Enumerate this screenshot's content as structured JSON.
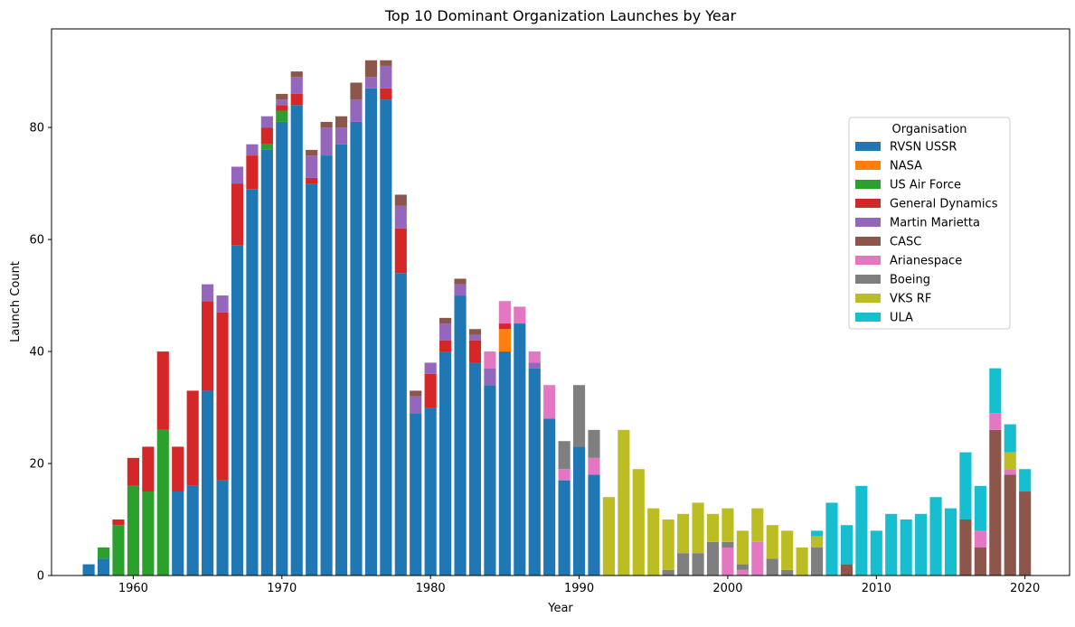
{
  "chart_data": {
    "type": "bar",
    "stacked": true,
    "title": "Top 10 Dominant Organization Launches by Year",
    "xlabel": "Year",
    "ylabel": "Launch Count",
    "xlim": [
      1954.5,
      2023
    ],
    "ylim": [
      0,
      97.6
    ],
    "xticks": [
      1960,
      1970,
      1980,
      1990,
      2000,
      2010,
      2020
    ],
    "yticks": [
      0,
      20,
      40,
      60,
      80
    ],
    "grid": false,
    "legend": {
      "title": "Organisation",
      "placement": "upper-right"
    },
    "series": [
      {
        "name": "RVSN USSR",
        "color": "#1f77b4",
        "data": {
          "1957": 2,
          "1958": 3,
          "1963": 15,
          "1964": 16,
          "1965": 33,
          "1966": 17,
          "1967": 59,
          "1968": 69,
          "1969": 76,
          "1970": 81,
          "1971": 84,
          "1972": 70,
          "1973": 75,
          "1974": 77,
          "1975": 81,
          "1976": 87,
          "1977": 85,
          "1978": 54,
          "1979": 29,
          "1980": 30,
          "1981": 40,
          "1982": 50,
          "1983": 38,
          "1984": 34,
          "1985": 40,
          "1986": 45,
          "1987": 37,
          "1988": 28,
          "1989": 17,
          "1990": 23,
          "1991": 18
        }
      },
      {
        "name": "NASA",
        "color": "#ff7f0e",
        "data": {
          "1985": 4
        }
      },
      {
        "name": "US Air Force",
        "color": "#2ca02c",
        "data": {
          "1958": 2,
          "1959": 9,
          "1960": 16,
          "1961": 15,
          "1962": 26,
          "1969": 1,
          "1970": 2
        }
      },
      {
        "name": "General Dynamics",
        "color": "#d62728",
        "data": {
          "1959": 1,
          "1960": 5,
          "1961": 8,
          "1962": 14,
          "1963": 8,
          "1964": 17,
          "1965": 16,
          "1966": 30,
          "1967": 11,
          "1968": 6,
          "1969": 3,
          "1970": 1,
          "1971": 2,
          "1972": 1,
          "1977": 2,
          "1978": 8,
          "1980": 6,
          "1981": 2,
          "1983": 4,
          "1985": 1
        }
      },
      {
        "name": "Martin Marietta",
        "color": "#9467bd",
        "data": {
          "1965": 3,
          "1966": 3,
          "1967": 3,
          "1968": 2,
          "1969": 2,
          "1970": 1,
          "1971": 3,
          "1972": 4,
          "1973": 5,
          "1974": 3,
          "1975": 4,
          "1976": 2,
          "1977": 4,
          "1978": 4,
          "1979": 3,
          "1980": 2,
          "1981": 3,
          "1982": 2,
          "1983": 1,
          "1984": 3,
          "1987": 1
        }
      },
      {
        "name": "CASC",
        "color": "#8c564b",
        "data": {
          "1970": 1,
          "1971": 1,
          "1972": 1,
          "1973": 1,
          "1974": 2,
          "1975": 3,
          "1976": 3,
          "1977": 1,
          "1978": 2,
          "1979": 1,
          "1981": 1,
          "1982": 1,
          "1983": 1,
          "2008": 2,
          "2016": 10,
          "2017": 5,
          "2018": 26,
          "2019": 18,
          "2020": 15
        }
      },
      {
        "name": "Arianespace",
        "color": "#e377c2",
        "data": {
          "1984": 3,
          "1985": 4,
          "1986": 3,
          "1987": 2,
          "1988": 6,
          "1989": 2,
          "1991": 3,
          "2000": 5,
          "2001": 1,
          "2002": 6,
          "2017": 3,
          "2018": 3,
          "2019": 1
        }
      },
      {
        "name": "Boeing",
        "color": "#7f7f7f",
        "data": {
          "1989": 5,
          "1990": 11,
          "1991": 5,
          "1996": 1,
          "1997": 4,
          "1998": 4,
          "1999": 6,
          "2000": 1,
          "2001": 1,
          "2003": 3,
          "2004": 1,
          "2006": 5
        }
      },
      {
        "name": "VKS RF",
        "color": "#bcbd22",
        "data": {
          "1992": 14,
          "1993": 26,
          "1994": 19,
          "1995": 12,
          "1996": 9,
          "1997": 7,
          "1998": 9,
          "1999": 5,
          "2000": 6,
          "2001": 6,
          "2002": 6,
          "2003": 6,
          "2004": 7,
          "2005": 5,
          "2006": 2,
          "2019": 3
        }
      },
      {
        "name": "ULA",
        "color": "#17becf",
        "data": {
          "2006": 1,
          "2007": 13,
          "2008": 7,
          "2009": 16,
          "2010": 8,
          "2011": 11,
          "2012": 10,
          "2013": 11,
          "2014": 14,
          "2015": 12,
          "2016": 12,
          "2017": 8,
          "2018": 8,
          "2019": 5,
          "2020": 4
        }
      }
    ]
  }
}
